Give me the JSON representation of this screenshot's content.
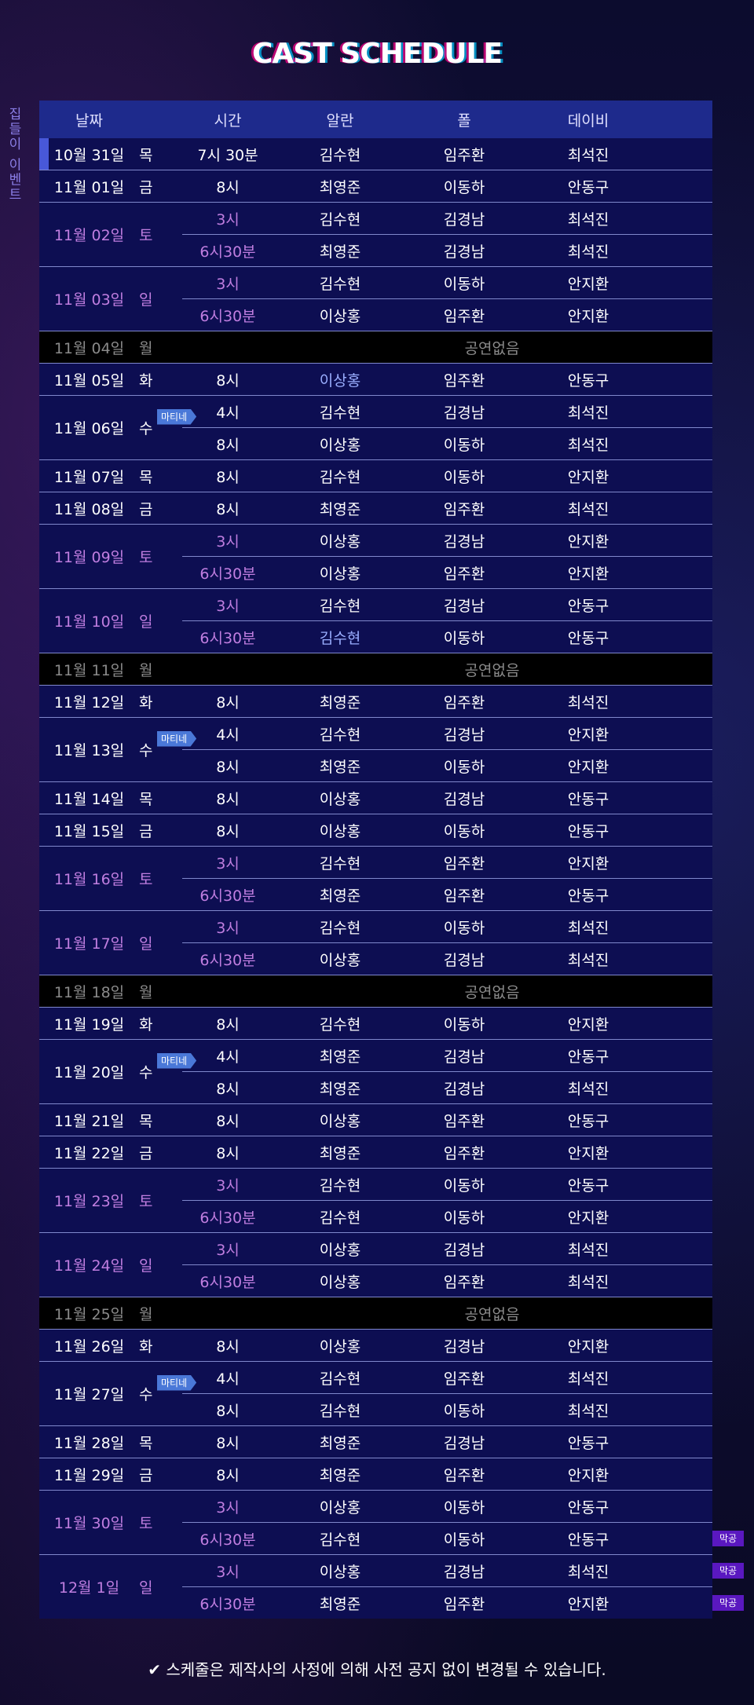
{
  "title": "CAST SCHEDULE",
  "side_label": "집들이 이벤트",
  "headers": [
    "날짜",
    "시간",
    "알란",
    "폴",
    "데이비"
  ],
  "rows": [
    {
      "date": "10월 31일",
      "dow": "목",
      "slots": [
        {
          "time": "7시 30분",
          "a": "김수현",
          "b": "임주환",
          "c": "최석진"
        }
      ],
      "current": true
    },
    {
      "date": "11월 01일",
      "dow": "금",
      "slots": [
        {
          "time": "8시",
          "a": "최영준",
          "b": "이동하",
          "c": "안동구"
        }
      ]
    },
    {
      "date": "11월 02일",
      "dow": "토",
      "weekend": true,
      "slots": [
        {
          "time": "3시",
          "a": "김수현",
          "b": "김경남",
          "c": "최석진"
        },
        {
          "time": "6시30분",
          "a": "최영준",
          "b": "김경남",
          "c": "최석진"
        }
      ]
    },
    {
      "date": "11월 03일",
      "dow": "일",
      "weekend": true,
      "slots": [
        {
          "time": "3시",
          "a": "김수현",
          "b": "이동하",
          "c": "안지환"
        },
        {
          "time": "6시30분",
          "a": "이상홍",
          "b": "임주환",
          "c": "안지환"
        }
      ]
    },
    {
      "date": "11월 04일",
      "dow": "월",
      "off": "공연없음"
    },
    {
      "date": "11월 05일",
      "dow": "화",
      "slots": [
        {
          "time": "8시",
          "a": "이상홍",
          "b": "임주환",
          "c": "안동구",
          "aBlue": true
        }
      ]
    },
    {
      "date": "11월 06일",
      "dow": "수",
      "slots": [
        {
          "time": "4시",
          "a": "김수현",
          "b": "김경남",
          "c": "최석진",
          "mat": "마티네"
        },
        {
          "time": "8시",
          "a": "이상홍",
          "b": "이동하",
          "c": "최석진"
        }
      ]
    },
    {
      "date": "11월 07일",
      "dow": "목",
      "slots": [
        {
          "time": "8시",
          "a": "김수현",
          "b": "이동하",
          "c": "안지환"
        }
      ]
    },
    {
      "date": "11월 08일",
      "dow": "금",
      "slots": [
        {
          "time": "8시",
          "a": "최영준",
          "b": "임주환",
          "c": "최석진"
        }
      ]
    },
    {
      "date": "11월 09일",
      "dow": "토",
      "weekend": true,
      "slots": [
        {
          "time": "3시",
          "a": "이상홍",
          "b": "김경남",
          "c": "안지환"
        },
        {
          "time": "6시30분",
          "a": "이상홍",
          "b": "임주환",
          "c": "안지환"
        }
      ]
    },
    {
      "date": "11월 10일",
      "dow": "일",
      "weekend": true,
      "slots": [
        {
          "time": "3시",
          "a": "김수현",
          "b": "김경남",
          "c": "안동구"
        },
        {
          "time": "6시30분",
          "a": "김수현",
          "b": "이동하",
          "c": "안동구",
          "aBlue": true
        }
      ]
    },
    {
      "date": "11월 11일",
      "dow": "월",
      "off": "공연없음"
    },
    {
      "date": "11월 12일",
      "dow": "화",
      "slots": [
        {
          "time": "8시",
          "a": "최영준",
          "b": "임주환",
          "c": "최석진"
        }
      ]
    },
    {
      "date": "11월 13일",
      "dow": "수",
      "slots": [
        {
          "time": "4시",
          "a": "김수현",
          "b": "김경남",
          "c": "안지환",
          "mat": "마티네"
        },
        {
          "time": "8시",
          "a": "최영준",
          "b": "이동하",
          "c": "안지환"
        }
      ]
    },
    {
      "date": "11월 14일",
      "dow": "목",
      "slots": [
        {
          "time": "8시",
          "a": "이상홍",
          "b": "김경남",
          "c": "안동구"
        }
      ]
    },
    {
      "date": "11월 15일",
      "dow": "금",
      "slots": [
        {
          "time": "8시",
          "a": "이상홍",
          "b": "이동하",
          "c": "안동구"
        }
      ]
    },
    {
      "date": "11월 16일",
      "dow": "토",
      "weekend": true,
      "slots": [
        {
          "time": "3시",
          "a": "김수현",
          "b": "임주환",
          "c": "안지환"
        },
        {
          "time": "6시30분",
          "a": "최영준",
          "b": "임주환",
          "c": "안동구"
        }
      ]
    },
    {
      "date": "11월 17일",
      "dow": "일",
      "weekend": true,
      "slots": [
        {
          "time": "3시",
          "a": "김수현",
          "b": "이동하",
          "c": "최석진"
        },
        {
          "time": "6시30분",
          "a": "이상홍",
          "b": "김경남",
          "c": "최석진"
        }
      ]
    },
    {
      "date": "11월 18일",
      "dow": "월",
      "off": "공연없음"
    },
    {
      "date": "11월 19일",
      "dow": "화",
      "slots": [
        {
          "time": "8시",
          "a": "김수현",
          "b": "이동하",
          "c": "안지환"
        }
      ]
    },
    {
      "date": "11월 20일",
      "dow": "수",
      "slots": [
        {
          "time": "4시",
          "a": "최영준",
          "b": "김경남",
          "c": "안동구",
          "mat": "마티네"
        },
        {
          "time": "8시",
          "a": "최영준",
          "b": "김경남",
          "c": "최석진"
        }
      ]
    },
    {
      "date": "11월 21일",
      "dow": "목",
      "slots": [
        {
          "time": "8시",
          "a": "이상홍",
          "b": "임주환",
          "c": "안동구"
        }
      ]
    },
    {
      "date": "11월 22일",
      "dow": "금",
      "slots": [
        {
          "time": "8시",
          "a": "최영준",
          "b": "임주환",
          "c": "안지환"
        }
      ]
    },
    {
      "date": "11월 23일",
      "dow": "토",
      "weekend": true,
      "slots": [
        {
          "time": "3시",
          "a": "김수현",
          "b": "이동하",
          "c": "안동구"
        },
        {
          "time": "6시30분",
          "a": "김수현",
          "b": "이동하",
          "c": "안지환"
        }
      ]
    },
    {
      "date": "11월 24일",
      "dow": "일",
      "weekend": true,
      "slots": [
        {
          "time": "3시",
          "a": "이상홍",
          "b": "김경남",
          "c": "최석진"
        },
        {
          "time": "6시30분",
          "a": "이상홍",
          "b": "임주환",
          "c": "최석진"
        }
      ]
    },
    {
      "date": "11월 25일",
      "dow": "월",
      "off": "공연없음"
    },
    {
      "date": "11월 26일",
      "dow": "화",
      "slots": [
        {
          "time": "8시",
          "a": "이상홍",
          "b": "김경남",
          "c": "안지환"
        }
      ]
    },
    {
      "date": "11월 27일",
      "dow": "수",
      "slots": [
        {
          "time": "4시",
          "a": "김수현",
          "b": "임주환",
          "c": "최석진",
          "mat": "마티네"
        },
        {
          "time": "8시",
          "a": "김수현",
          "b": "이동하",
          "c": "최석진"
        }
      ]
    },
    {
      "date": "11월 28일",
      "dow": "목",
      "slots": [
        {
          "time": "8시",
          "a": "최영준",
          "b": "김경남",
          "c": "안동구"
        }
      ]
    },
    {
      "date": "11월 29일",
      "dow": "금",
      "slots": [
        {
          "time": "8시",
          "a": "최영준",
          "b": "임주환",
          "c": "안지환"
        }
      ]
    },
    {
      "date": "11월 30일",
      "dow": "토",
      "weekend": true,
      "slots": [
        {
          "time": "3시",
          "a": "이상홍",
          "b": "이동하",
          "c": "안동구"
        },
        {
          "time": "6시30분",
          "a": "김수현",
          "b": "이동하",
          "c": "안동구",
          "last": "막공"
        }
      ]
    },
    {
      "date": "12월  1일",
      "dow": "일",
      "weekend": true,
      "slots": [
        {
          "time": "3시",
          "a": "이상홍",
          "b": "김경남",
          "c": "최석진",
          "last": "막공"
        },
        {
          "time": "6시30분",
          "a": "최영준",
          "b": "임주환",
          "c": "안지환",
          "last": "막공"
        }
      ]
    }
  ],
  "note": "✔ 스케줄은 제작사의 사정에 의해 사전 공지 없이 변경될 수 있습니다."
}
